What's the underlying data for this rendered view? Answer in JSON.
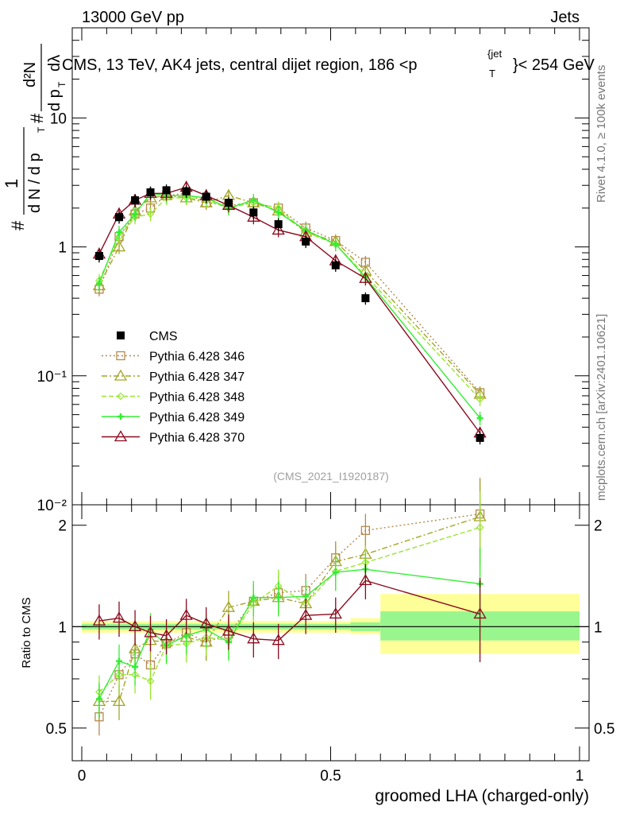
{
  "header": {
    "energy_label": "13000 GeV pp",
    "category_label": "Jets",
    "title": "CMS, 13 TeV, AK4 jets, central dijet region, 186 <p",
    "title_sup": "{jet",
    "title_sub": "T",
    "title_tail": "}< 254 GeV",
    "analysis_tag": "(CMS_2021_I1920187)"
  },
  "side_labels": {
    "rivet": "Rivet 4.1.0, ≥ 100k events",
    "mcplots": "mcplots.cern.ch [arXiv:2401.10621]"
  },
  "y_label_main": {
    "hash_top": "#",
    "numerator": "1",
    "denominator": "d N / d p",
    "den_sub": "T",
    "d2n": "d²N",
    "dpt": "d p",
    "dpt_sub": "T",
    "dlambda": "dλ"
  },
  "colors": {
    "cms": "#000000",
    "p346": "#b5894f",
    "p347": "#a4a626",
    "p348": "#99e62e",
    "p349": "#33ee33",
    "p370": "#8b0a1e",
    "band_outer": "#ffff99",
    "band_inner": "#99f58e"
  },
  "chart_data": [
    {
      "type": "line",
      "panel": "main",
      "xlabel": "groomed LHA (charged-only)",
      "ylabel": "1/(dN/dpT) d²N/(dpT dλ)",
      "xlim": [
        0,
        1
      ],
      "ylim": [
        0.01,
        50
      ],
      "yscale": "log",
      "y_tick_labels": [
        "10⁻²",
        "10⁻¹",
        "1",
        "10"
      ],
      "legend_position": "middle-left",
      "legend": [
        "CMS",
        "Pythia 6.428 346",
        "Pythia 6.428 347",
        "Pythia 6.428 348",
        "Pythia 6.428 349",
        "Pythia 6.428 370"
      ],
      "x": [
        0.035,
        0.075,
        0.107,
        0.138,
        0.17,
        0.21,
        0.25,
        0.295,
        0.345,
        0.395,
        0.45,
        0.51,
        0.57,
        0.8
      ],
      "series": [
        {
          "name": "CMS",
          "style": "cms",
          "values": [
            0.85,
            1.7,
            2.3,
            2.65,
            2.75,
            2.7,
            2.45,
            2.2,
            1.85,
            1.5,
            1.1,
            0.72,
            0.4,
            0.033
          ]
        },
        {
          "name": "Pythia 6.428 346",
          "style": "p346",
          "values": [
            0.47,
            1.2,
            1.8,
            2.0,
            2.5,
            2.6,
            2.2,
            2.1,
            2.2,
            2.0,
            1.4,
            1.12,
            0.76,
            0.074
          ]
        },
        {
          "name": "Pythia 6.428 347",
          "style": "p347",
          "values": [
            0.5,
            1.0,
            1.9,
            2.4,
            2.5,
            2.4,
            2.2,
            2.5,
            2.2,
            1.9,
            1.3,
            1.1,
            0.65,
            0.072
          ]
        },
        {
          "name": "Pythia 6.428 348",
          "style": "p348",
          "values": [
            0.55,
            1.2,
            1.7,
            1.8,
            2.4,
            2.4,
            2.3,
            2.0,
            2.2,
            2.0,
            1.3,
            1.05,
            0.6,
            0.066
          ]
        },
        {
          "name": "Pythia 6.428 349",
          "style": "p349",
          "values": [
            0.52,
            1.3,
            1.8,
            2.6,
            2.5,
            2.5,
            2.4,
            2.0,
            2.3,
            1.85,
            1.35,
            1.05,
            0.58,
            0.047
          ]
        },
        {
          "name": "Pythia 6.428 370",
          "style": "p370",
          "values": [
            0.88,
            1.8,
            2.3,
            2.6,
            2.6,
            2.9,
            2.5,
            2.1,
            1.7,
            1.35,
            1.2,
            0.78,
            0.57,
            0.036
          ]
        }
      ]
    },
    {
      "type": "line",
      "panel": "ratio",
      "xlabel": "groomed LHA (charged-only)",
      "ylabel": "Ratio to CMS",
      "xlim": [
        0,
        1
      ],
      "ylim": [
        0.4,
        2.3
      ],
      "yscale": "log",
      "y_tick_labels": [
        "0.5",
        "1",
        "2"
      ],
      "x_tick_labels": [
        "0",
        "0.5",
        "1"
      ],
      "x": [
        0.035,
        0.075,
        0.107,
        0.138,
        0.17,
        0.21,
        0.25,
        0.295,
        0.345,
        0.395,
        0.45,
        0.51,
        0.57,
        0.8
      ],
      "bands": [
        {
          "xmin": 0.0,
          "xmax": 0.54,
          "outer": [
            0.96,
            1.04
          ],
          "inner": [
            0.98,
            1.02
          ]
        },
        {
          "xmin": 0.54,
          "xmax": 0.6,
          "outer": [
            0.95,
            1.06
          ],
          "inner": [
            0.97,
            1.03
          ]
        },
        {
          "xmin": 0.6,
          "xmax": 1.0,
          "outer": [
            0.83,
            1.25
          ],
          "inner": [
            0.91,
            1.11
          ]
        }
      ],
      "series": [
        {
          "name": "Pythia 6.428 346",
          "style": "p346",
          "values": [
            0.54,
            0.72,
            0.83,
            0.77,
            0.89,
            0.96,
            0.9,
            0.95,
            1.19,
            1.26,
            1.28,
            1.6,
            1.93,
            2.16
          ]
        },
        {
          "name": "Pythia 6.428 347",
          "style": "p347",
          "values": [
            0.6,
            0.6,
            0.86,
            0.91,
            0.9,
            0.93,
            0.9,
            1.14,
            1.19,
            1.22,
            1.17,
            1.56,
            1.64,
            2.12
          ]
        },
        {
          "name": "Pythia 6.428 348",
          "style": "p348",
          "values": [
            0.64,
            0.72,
            0.72,
            0.69,
            0.88,
            0.89,
            0.93,
            0.91,
            1.17,
            1.32,
            1.17,
            1.46,
            1.55,
            1.97
          ]
        },
        {
          "name": "Pythia 6.428 349",
          "style": "p349",
          "values": [
            0.61,
            0.79,
            0.76,
            0.98,
            0.88,
            0.94,
            0.98,
            0.9,
            1.22,
            1.22,
            1.23,
            1.45,
            1.48,
            1.34
          ]
        },
        {
          "name": "Pythia 6.428 370",
          "style": "p370",
          "values": [
            1.04,
            1.06,
            1.0,
            0.96,
            0.94,
            1.08,
            1.02,
            0.97,
            0.92,
            0.91,
            1.08,
            1.09,
            1.37,
            1.09
          ]
        }
      ]
    }
  ]
}
